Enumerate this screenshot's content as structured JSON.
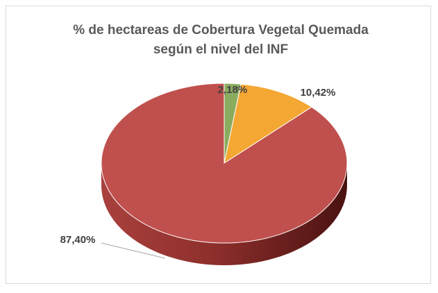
{
  "chart_data": {
    "type": "pie",
    "title": [
      "% de hectareas de Cobertura Vegetal Quemada",
      "según el nivel del INF"
    ],
    "values": [
      2.18,
      10.42,
      87.4
    ],
    "value_labels": [
      "2,18%",
      "10,42%",
      "87,40%"
    ],
    "colors": [
      "#8aac5f",
      "#f5a733",
      "#c0504d"
    ]
  }
}
